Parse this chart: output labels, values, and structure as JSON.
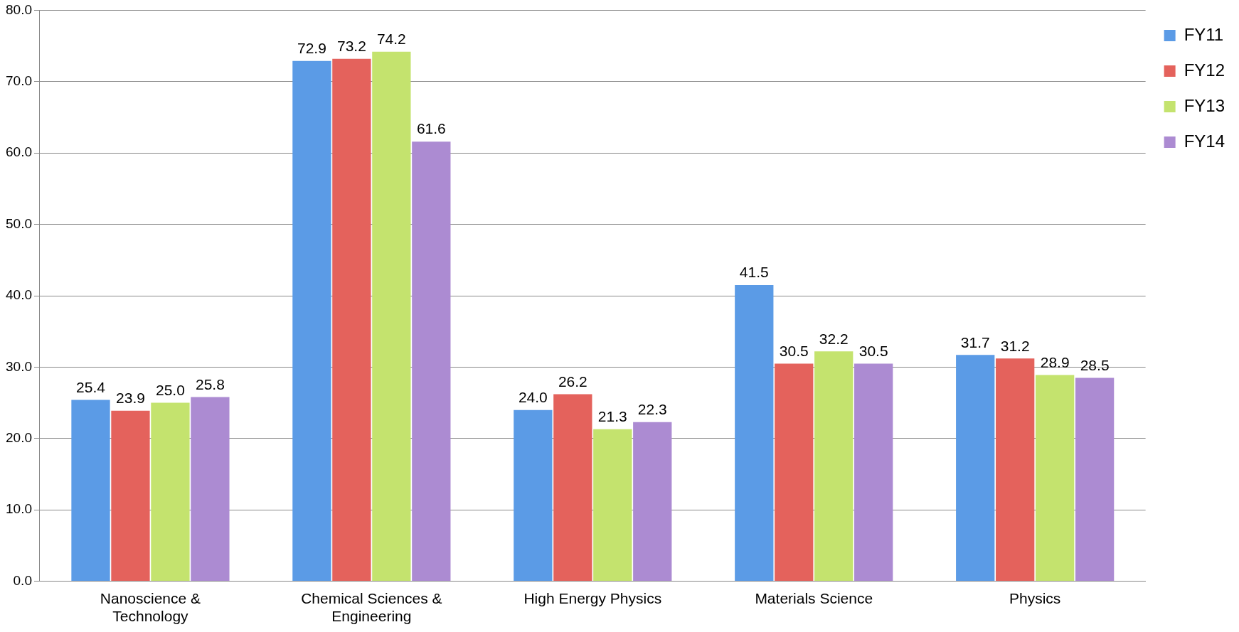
{
  "chart_data": {
    "type": "bar",
    "categories": [
      "Nanoscience & Technology",
      "Chemical Sciences & Engineering",
      "High Energy Physics",
      "Materials Science",
      "Physics"
    ],
    "series": [
      {
        "name": "FY11",
        "color": "#5b9be6",
        "values": [
          25.4,
          72.9,
          24.0,
          41.5,
          31.7
        ],
        "value_labels": [
          "25.4",
          "72.9",
          "24.0",
          "41.5",
          "31.7"
        ]
      },
      {
        "name": "FY12",
        "color": "#e4625c",
        "values": [
          23.9,
          73.2,
          26.2,
          30.5,
          31.2
        ],
        "value_labels": [
          "23.9",
          "73.2",
          "26.2",
          "30.5",
          "31.2"
        ]
      },
      {
        "name": "FY13",
        "color": "#c4e36e",
        "values": [
          25.0,
          74.2,
          21.3,
          32.2,
          28.9
        ],
        "value_labels": [
          "25.0",
          "74.2",
          "21.3",
          "32.2",
          "28.9"
        ]
      },
      {
        "name": "FY14",
        "color": "#ac8bd2",
        "values": [
          25.8,
          61.6,
          22.3,
          30.5,
          28.5
        ],
        "value_labels": [
          "25.8",
          "61.6",
          "22.3",
          "30.5",
          "28.5"
        ]
      }
    ],
    "ylim": [
      0,
      80
    ],
    "yticks": [
      {
        "value": 0,
        "label": "0.0"
      },
      {
        "value": 10,
        "label": "10.0"
      },
      {
        "value": 20,
        "label": "20.0"
      },
      {
        "value": 30,
        "label": "30.0"
      },
      {
        "value": 40,
        "label": "40.0"
      },
      {
        "value": 50,
        "label": "50.0"
      },
      {
        "value": 60,
        "label": "60.0"
      },
      {
        "value": 70,
        "label": "70.0"
      },
      {
        "value": 80,
        "label": "80.0"
      }
    ],
    "grid": "y",
    "legend": "right"
  }
}
